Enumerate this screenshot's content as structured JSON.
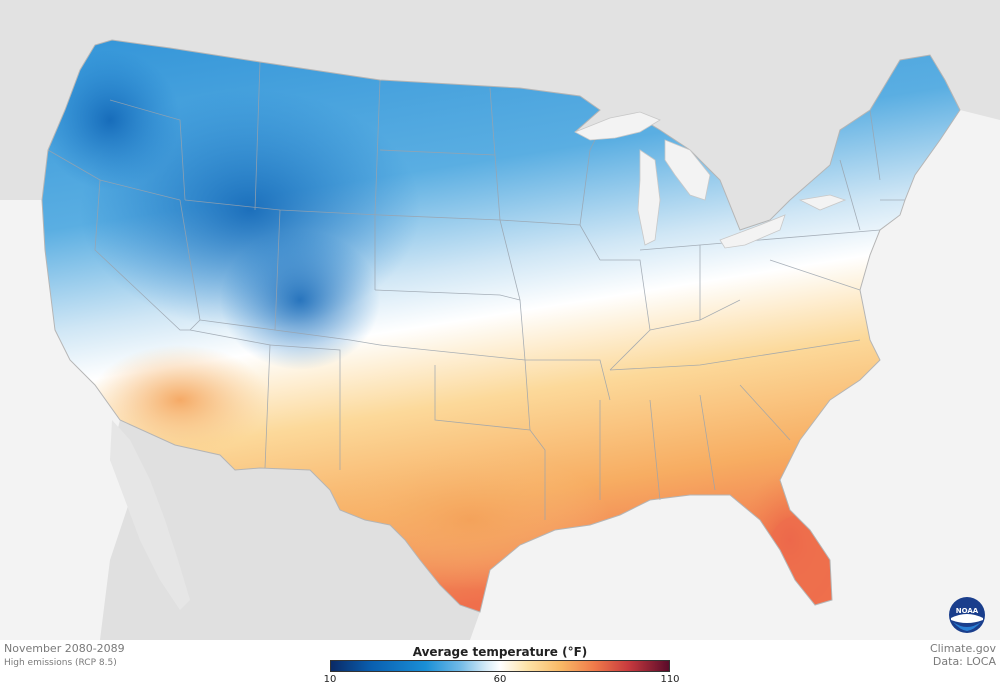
{
  "map": {
    "title": "Average temperature (°F)",
    "period": "November 2080-2089",
    "scenario": "High emissions (RCP 8.5)",
    "legend": {
      "title": "Average temperature (°F)",
      "min": 10,
      "mid": 60,
      "max": 110,
      "tick_labels": [
        "10",
        "60",
        "110"
      ],
      "colors": [
        "#0a2a66",
        "#1a8fd6",
        "#ffffff",
        "#f8b966",
        "#ef7a4a",
        "#5a0b2a"
      ]
    },
    "credit_site": "Climate.gov",
    "credit_data": "Data: LOCA",
    "logo_text": "NOAA"
  }
}
